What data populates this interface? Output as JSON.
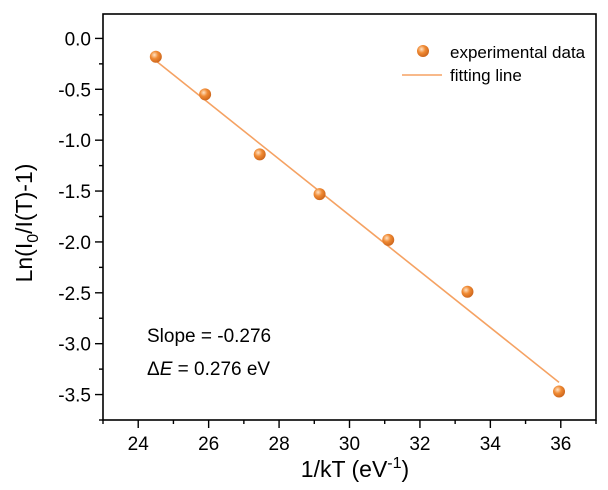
{
  "chart_data": {
    "type": "scatter",
    "xlabel": "1/kT (eV",
    "xlabel_sup": "-1",
    "xlabel_tail": ")",
    "ylabel_pre": "Ln(I",
    "ylabel_sub": "0",
    "ylabel_post": "/I(T)-1)",
    "xlim": [
      23,
      37
    ],
    "ylim": [
      -3.75,
      0.24
    ],
    "xticks": [
      24,
      26,
      28,
      30,
      32,
      34,
      36
    ],
    "xtick_labels": [
      "24",
      "26",
      "28",
      "30",
      "32",
      "34",
      "36"
    ],
    "yticks": [
      0.0,
      -0.5,
      -1.0,
      -1.5,
      -2.0,
      -2.5,
      -3.0,
      -3.5
    ],
    "ytick_labels": [
      "0.0",
      "-0.5",
      "-1.0",
      "-1.5",
      "-2.0",
      "-2.5",
      "-3.0",
      "-3.5"
    ],
    "grid": false,
    "legend_position": "top-right",
    "series": [
      {
        "name": "experimental data",
        "kind": "scatter",
        "color": "#f08a33",
        "points": [
          {
            "x": 24.5,
            "y": -0.18
          },
          {
            "x": 25.9,
            "y": -0.55
          },
          {
            "x": 27.45,
            "y": -1.14
          },
          {
            "x": 29.15,
            "y": -1.53
          },
          {
            "x": 31.1,
            "y": -1.98
          },
          {
            "x": 33.35,
            "y": -2.49
          },
          {
            "x": 35.95,
            "y": -3.47
          }
        ]
      },
      {
        "name": "fitting line",
        "kind": "line",
        "color": "#f5a263",
        "points": [
          {
            "x": 24.5,
            "y": -0.22
          },
          {
            "x": 35.95,
            "y": -3.38
          }
        ]
      }
    ],
    "annotations": {
      "slope_text": "Slope = -0.276",
      "delta_symbol": "Δ",
      "delta_var": "E",
      "delta_text": " = 0.276 eV"
    }
  }
}
